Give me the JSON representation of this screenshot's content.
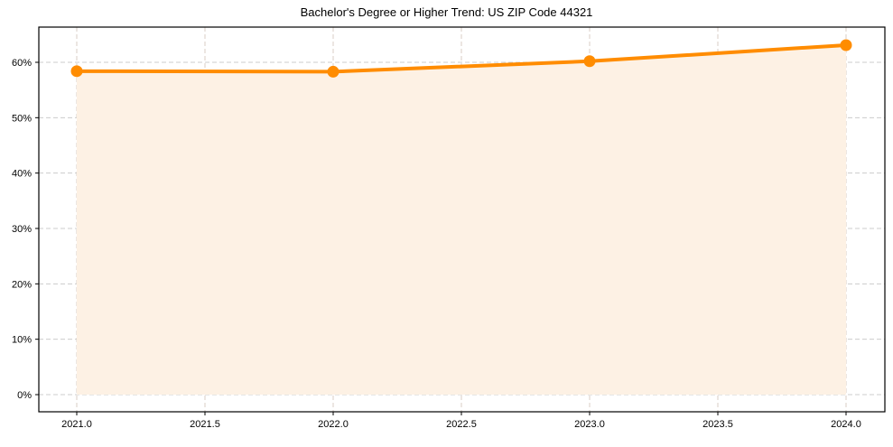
{
  "chart_data": {
    "type": "line",
    "title": "Bachelor's Degree or Higher Trend: US ZIP Code 44321",
    "xlabel": "",
    "ylabel": "",
    "x": [
      2021,
      2022,
      2023,
      2024
    ],
    "series": [
      {
        "name": "Bachelor's Degree or Higher",
        "values": [
          58.4,
          58.3,
          60.2,
          63.1
        ],
        "color": "#ff8c00",
        "fill": "#fdf1e4"
      }
    ],
    "xlim": [
      2020.85,
      2024.15
    ],
    "ylim": [
      -3.1,
      66.2
    ],
    "xticks": [
      2021.0,
      2021.5,
      2022.0,
      2022.5,
      2023.0,
      2023.5,
      2024.0
    ],
    "xtick_labels": [
      "2021.0",
      "2021.5",
      "2022.0",
      "2022.5",
      "2023.0",
      "2023.5",
      "2024.0"
    ],
    "yticks": [
      0,
      10,
      20,
      30,
      40,
      50,
      60
    ],
    "ytick_labels": [
      "0%",
      "10%",
      "20%",
      "30%",
      "40%",
      "50%",
      "60%"
    ],
    "grid": true,
    "legend": null
  }
}
